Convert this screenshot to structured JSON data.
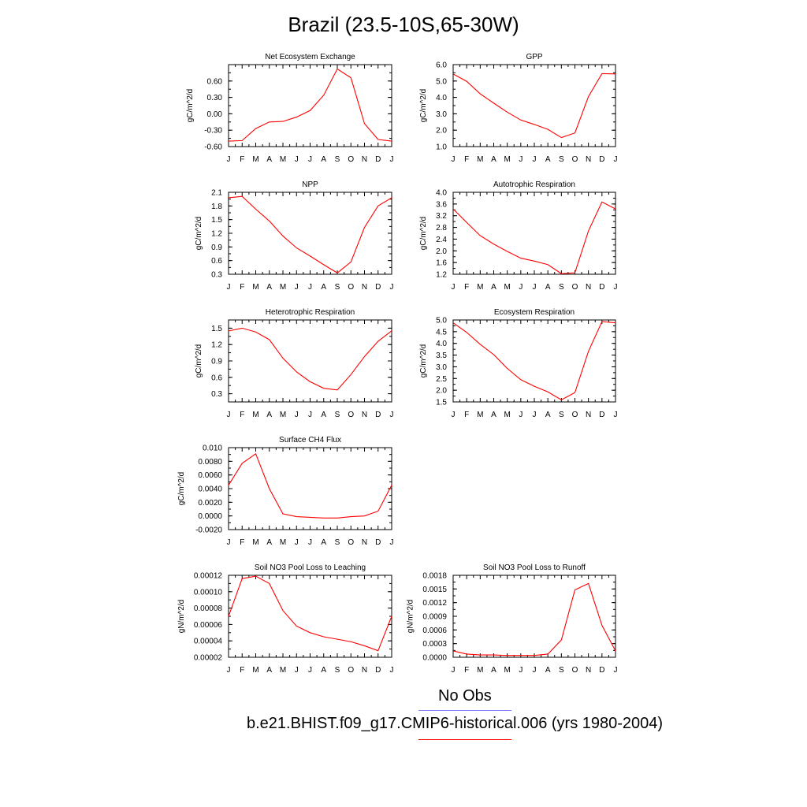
{
  "title": "Brazil (23.5-10S,65-30W)",
  "legend": {
    "entries": [
      {
        "label": "No Obs",
        "color": "#8080ff"
      },
      {
        "label": "b.e21.BHIST.f09_g17.CMIP6-historical.006 (yrs 1980-2004)",
        "color": "#ff0000"
      }
    ]
  },
  "colors": {
    "line": "#ff0000",
    "frame": "#000000"
  },
  "chart_data": [
    {
      "type": "line",
      "title": "Net Ecosystem Exchange",
      "ylabel": "gC/m^2/d",
      "x": [
        "J",
        "F",
        "M",
        "A",
        "M",
        "J",
        "J",
        "A",
        "S",
        "O",
        "N",
        "D",
        "J"
      ],
      "ylim": [
        -0.6,
        0.9
      ],
      "yticks": [
        -0.6,
        -0.3,
        0.0,
        0.3,
        0.6
      ],
      "yticklabels": [
        "-0.60",
        "-0.30",
        "0.00",
        "0.30",
        "0.60"
      ],
      "series": [
        {
          "values": [
            -0.5,
            -0.49,
            -0.27,
            -0.15,
            -0.14,
            -0.06,
            0.06,
            0.34,
            0.82,
            0.66,
            -0.18,
            -0.47,
            -0.5
          ]
        }
      ]
    },
    {
      "type": "line",
      "title": "GPP",
      "ylabel": "gC/m^2/d",
      "x": [
        "J",
        "F",
        "M",
        "A",
        "M",
        "J",
        "J",
        "A",
        "S",
        "O",
        "N",
        "D",
        "J"
      ],
      "ylim": [
        1.0,
        6.0
      ],
      "yticks": [
        1.0,
        2.0,
        3.0,
        4.0,
        5.0,
        6.0
      ],
      "yticklabels": [
        "1.0",
        "2.0",
        "3.0",
        "4.0",
        "5.0",
        "6.0"
      ],
      "series": [
        {
          "values": [
            5.43,
            4.98,
            4.22,
            3.65,
            3.1,
            2.62,
            2.35,
            2.05,
            1.55,
            1.83,
            4.05,
            5.45,
            5.43
          ]
        }
      ]
    },
    {
      "type": "line",
      "title": "NPP",
      "ylabel": "gC/m^2/d",
      "x": [
        "J",
        "F",
        "M",
        "A",
        "M",
        "J",
        "J",
        "A",
        "S",
        "O",
        "N",
        "D",
        "J"
      ],
      "ylim": [
        0.3,
        2.1
      ],
      "yticks": [
        0.3,
        0.6,
        0.9,
        1.2,
        1.5,
        1.8,
        2.1
      ],
      "yticklabels": [
        "0.3",
        "0.6",
        "0.9",
        "1.2",
        "1.5",
        "1.8",
        "2.1"
      ],
      "series": [
        {
          "values": [
            1.98,
            2.01,
            1.73,
            1.47,
            1.14,
            0.88,
            0.7,
            0.51,
            0.33,
            0.57,
            1.33,
            1.8,
            1.98
          ]
        }
      ]
    },
    {
      "type": "line",
      "title": "Autotrophic Respiration",
      "ylabel": "gC/m^2/d",
      "x": [
        "J",
        "F",
        "M",
        "A",
        "M",
        "J",
        "J",
        "A",
        "S",
        "O",
        "N",
        "D",
        "J"
      ],
      "ylim": [
        1.2,
        4.0
      ],
      "yticks": [
        1.2,
        1.6,
        2.0,
        2.4,
        2.8,
        3.2,
        3.6,
        4.0
      ],
      "yticklabels": [
        "1.2",
        "1.6",
        "2.0",
        "2.4",
        "2.8",
        "3.2",
        "3.6",
        "4.0"
      ],
      "series": [
        {
          "values": [
            3.43,
            2.97,
            2.52,
            2.23,
            1.98,
            1.75,
            1.65,
            1.53,
            1.22,
            1.25,
            2.68,
            3.67,
            3.43
          ]
        }
      ]
    },
    {
      "type": "line",
      "title": "Heterotrophic Respiration",
      "ylabel": "gC/m^2/d",
      "x": [
        "J",
        "F",
        "M",
        "A",
        "M",
        "J",
        "J",
        "A",
        "S",
        "O",
        "N",
        "D",
        "J"
      ],
      "ylim": [
        0.15,
        1.65
      ],
      "yticks": [
        0.3,
        0.6,
        0.9,
        1.2,
        1.5
      ],
      "yticklabels": [
        "0.3",
        "0.6",
        "0.9",
        "1.2",
        "1.5"
      ],
      "series": [
        {
          "values": [
            1.45,
            1.5,
            1.43,
            1.29,
            0.95,
            0.7,
            0.52,
            0.4,
            0.37,
            0.65,
            0.98,
            1.26,
            1.45
          ]
        }
      ]
    },
    {
      "type": "line",
      "title": "Ecosystem Respiration",
      "ylabel": "gC/m^2/d",
      "x": [
        "J",
        "F",
        "M",
        "A",
        "M",
        "J",
        "J",
        "A",
        "S",
        "O",
        "N",
        "D",
        "J"
      ],
      "ylim": [
        1.5,
        5.0
      ],
      "yticks": [
        1.5,
        2.0,
        2.5,
        3.0,
        3.5,
        4.0,
        4.5,
        5.0
      ],
      "yticklabels": [
        "1.5",
        "2.0",
        "2.5",
        "3.0",
        "3.5",
        "4.0",
        "4.5",
        "5.0"
      ],
      "series": [
        {
          "values": [
            4.88,
            4.47,
            3.96,
            3.52,
            2.93,
            2.45,
            2.17,
            1.93,
            1.59,
            1.9,
            3.66,
            4.93,
            4.88
          ]
        }
      ]
    },
    {
      "type": "line",
      "title": "Surface CH4 Flux",
      "ylabel": "gC/m^2/d",
      "x": [
        "J",
        "F",
        "M",
        "A",
        "M",
        "J",
        "J",
        "A",
        "S",
        "O",
        "N",
        "D",
        "J"
      ],
      "ylim": [
        -0.002,
        0.01
      ],
      "yticks": [
        -0.002,
        0.0,
        0.002,
        0.004,
        0.006,
        0.008,
        0.01
      ],
      "yticklabels": [
        "-0.0020",
        "0.0000",
        "0.0020",
        "0.0040",
        "0.0060",
        "0.0080",
        "0.010"
      ],
      "series": [
        {
          "values": [
            0.0045,
            0.0077,
            0.0091,
            0.004,
            0.0003,
            -0.0001,
            -0.0002,
            -0.0003,
            -0.0003,
            -0.0001,
            0.0,
            0.0007,
            0.0045
          ]
        }
      ]
    },
    {
      "type": "line",
      "title": "Soil NO3 Pool Loss to Leaching",
      "ylabel": "gN/m^2/d",
      "x": [
        "J",
        "F",
        "M",
        "A",
        "M",
        "J",
        "J",
        "A",
        "S",
        "O",
        "N",
        "D",
        "J"
      ],
      "ylim": [
        2e-05,
        0.00012
      ],
      "yticks": [
        2e-05,
        4e-05,
        6e-05,
        8e-05,
        0.0001,
        0.00012
      ],
      "yticklabels": [
        "0.00002",
        "0.00004",
        "0.00006",
        "0.00008",
        "0.00010",
        "0.00012"
      ],
      "series": [
        {
          "values": [
            7e-05,
            0.000116,
            0.000119,
            0.00011,
            7.7e-05,
            5.8e-05,
            5e-05,
            4.5e-05,
            4.2e-05,
            3.9e-05,
            3.4e-05,
            2.8e-05,
            7e-05
          ]
        }
      ]
    },
    {
      "type": "line",
      "title": "Soil NO3 Pool Loss to Runoff",
      "ylabel": "gN/m^2/d",
      "x": [
        "J",
        "F",
        "M",
        "A",
        "M",
        "J",
        "J",
        "A",
        "S",
        "O",
        "N",
        "D",
        "J"
      ],
      "ylim": [
        0.0,
        0.0018
      ],
      "yticks": [
        0.0,
        0.0003,
        0.0006,
        0.0009,
        0.0012,
        0.0015,
        0.0018
      ],
      "yticklabels": [
        "0.0000",
        "0.0003",
        "0.0006",
        "0.0009",
        "0.0012",
        "0.0015",
        "0.0018"
      ],
      "series": [
        {
          "values": [
            0.00014,
            7e-05,
            5e-05,
            5e-05,
            4e-05,
            4e-05,
            4e-05,
            7e-05,
            0.00038,
            0.00148,
            0.00162,
            0.0007,
            0.00014
          ]
        }
      ]
    }
  ]
}
